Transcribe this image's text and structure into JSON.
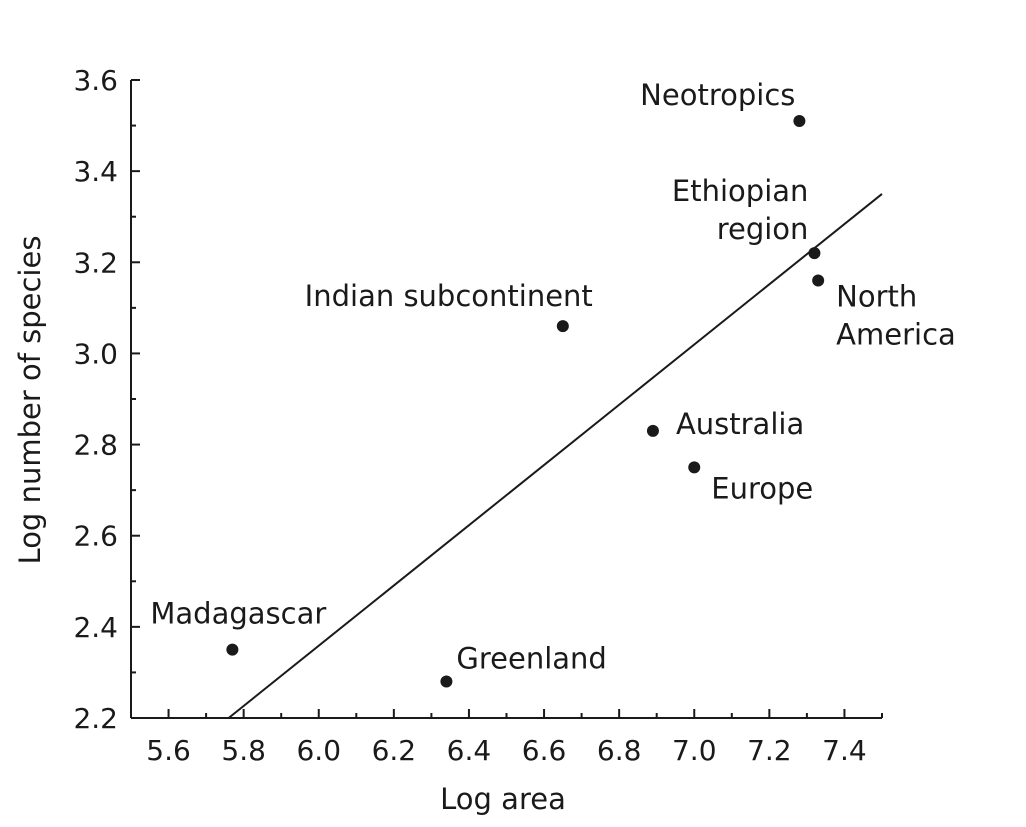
{
  "chart_data": {
    "type": "scatter",
    "xlabel": "Log area",
    "ylabel": "Log number of species",
    "xlim": [
      5.5,
      7.5
    ],
    "ylim": [
      2.2,
      3.6
    ],
    "xticks": [
      "5.6",
      "5.8",
      "6.0",
      "6.2",
      "6.4",
      "6.6",
      "6.8",
      "7.0",
      "7.2",
      "7.4"
    ],
    "yticks": [
      "2.2",
      "2.4",
      "2.6",
      "2.8",
      "3.0",
      "3.2",
      "3.4",
      "3.6"
    ],
    "points": [
      {
        "label": [
          "Neotropics"
        ],
        "x": 7.28,
        "y": 3.51
      },
      {
        "label": [
          "Ethiopian",
          "region"
        ],
        "x": 7.32,
        "y": 3.22
      },
      {
        "label": [
          "North",
          "America"
        ],
        "x": 7.33,
        "y": 3.16
      },
      {
        "label": [
          "Indian subcontinent"
        ],
        "x": 6.65,
        "y": 3.06
      },
      {
        "label": [
          "Australia"
        ],
        "x": 6.89,
        "y": 2.83
      },
      {
        "label": [
          "Europe"
        ],
        "x": 7.0,
        "y": 2.75
      },
      {
        "label": [
          "Madagascar"
        ],
        "x": 5.77,
        "y": 2.35
      },
      {
        "label": [
          "Greenland"
        ],
        "x": 6.34,
        "y": 2.28
      }
    ],
    "fit_line": {
      "x": [
        5.76,
        7.5
      ],
      "y": [
        2.2,
        3.35
      ]
    },
    "grid": false,
    "legend": "none"
  }
}
